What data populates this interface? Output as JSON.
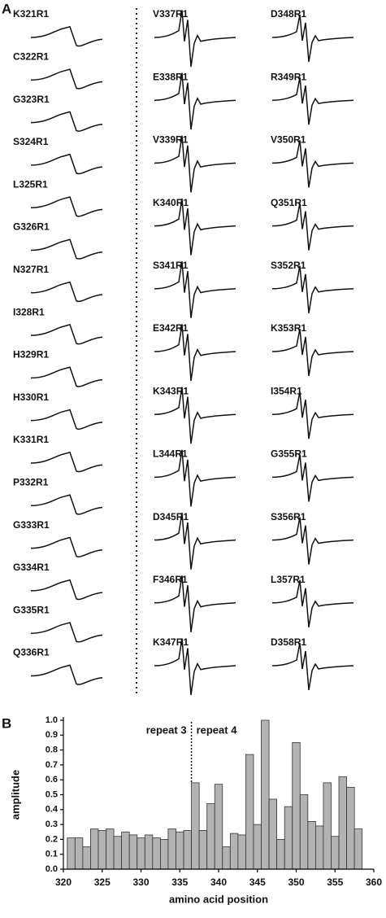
{
  "panel_a": {
    "label": "A",
    "spectra": [
      "K321R1",
      "C322R1",
      "G323R1",
      "S324R1",
      "L325R1",
      "G326R1",
      "N327R1",
      "I328R1",
      "H329R1",
      "H330R1",
      "K331R1",
      "P332R1",
      "G333R1",
      "G334R1",
      "G335R1",
      "Q336R1",
      "V337R1",
      "E338R1",
      "V339R1",
      "K340R1",
      "S341R1",
      "E342R1",
      "K343R1",
      "L344R1",
      "D345R1",
      "F346R1",
      "K347R1",
      "D348R1",
      "R349R1",
      "V350R1",
      "Q351R1",
      "S352R1",
      "K353R1",
      "I354R1",
      "G355R1",
      "S356R1",
      "L357R1",
      "D358R1"
    ]
  },
  "panel_b_label": "B",
  "chart_data": {
    "type": "bar",
    "xlabel": "amino acid position",
    "ylabel": "amplitude",
    "annotations": [
      "repeat 3",
      "repeat 4"
    ],
    "x": [
      321,
      322,
      323,
      324,
      325,
      326,
      327,
      328,
      329,
      330,
      331,
      332,
      333,
      334,
      335,
      336,
      337,
      338,
      339,
      340,
      341,
      342,
      343,
      344,
      345,
      346,
      347,
      348,
      349,
      350,
      351,
      352,
      353,
      354,
      355,
      356,
      357,
      358
    ],
    "values": [
      0.21,
      0.21,
      0.15,
      0.27,
      0.26,
      0.27,
      0.22,
      0.25,
      0.23,
      0.21,
      0.23,
      0.21,
      0.2,
      0.27,
      0.25,
      0.26,
      0.58,
      0.26,
      0.44,
      0.57,
      0.15,
      0.24,
      0.23,
      0.77,
      0.3,
      1.0,
      0.47,
      0.2,
      0.42,
      0.85,
      0.5,
      0.32,
      0.29,
      0.58,
      0.22,
      0.62,
      0.55,
      0.27
    ],
    "color": "#b3b3b3",
    "xlim": [
      320,
      360
    ],
    "xticks": [
      320,
      325,
      330,
      335,
      340,
      345,
      350,
      355,
      360
    ],
    "ylim": [
      0,
      1.0
    ],
    "yticks": [
      {
        "value": 0,
        "label": "0.0"
      },
      {
        "value": 0.1,
        "label": "0.1"
      },
      {
        "value": 0.2,
        "label": "0.2"
      },
      {
        "value": 0.3,
        "label": "0.3"
      },
      {
        "value": 0.4,
        "label": "0.4"
      },
      {
        "value": 0.5,
        "label": "0.5"
      },
      {
        "value": 0.6,
        "label": "0.6"
      },
      {
        "value": 0.7,
        "label": "0.7"
      },
      {
        "value": 0.8,
        "label": "0.8"
      },
      {
        "value": 0.9,
        "label": "0.9"
      },
      {
        "value": 1.0,
        "label": "1.0"
      }
    ]
  }
}
